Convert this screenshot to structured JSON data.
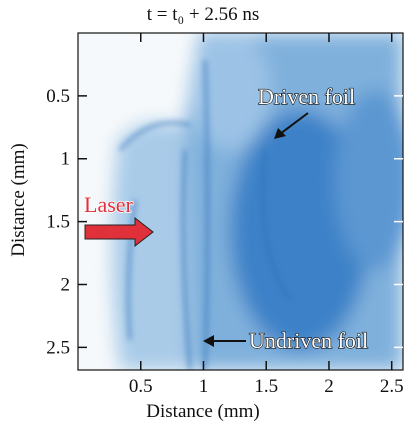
{
  "chart_data": {
    "type": "image",
    "title": "t = t₀ + 2.56 ns",
    "x_label": "Distance (mm)",
    "y_label": "Distance (mm)",
    "xlim": [
      0,
      2.59
    ],
    "ylim": [
      0,
      2.68
    ],
    "xticks": [
      0.5,
      1.0,
      1.5,
      2.0,
      2.5
    ],
    "yticks": [
      0.5,
      1.0,
      1.5,
      2.0,
      2.5
    ],
    "y_inverted": true,
    "annotations": [
      "Laser",
      "Driven foil",
      "Undriven foil"
    ]
  }
}
